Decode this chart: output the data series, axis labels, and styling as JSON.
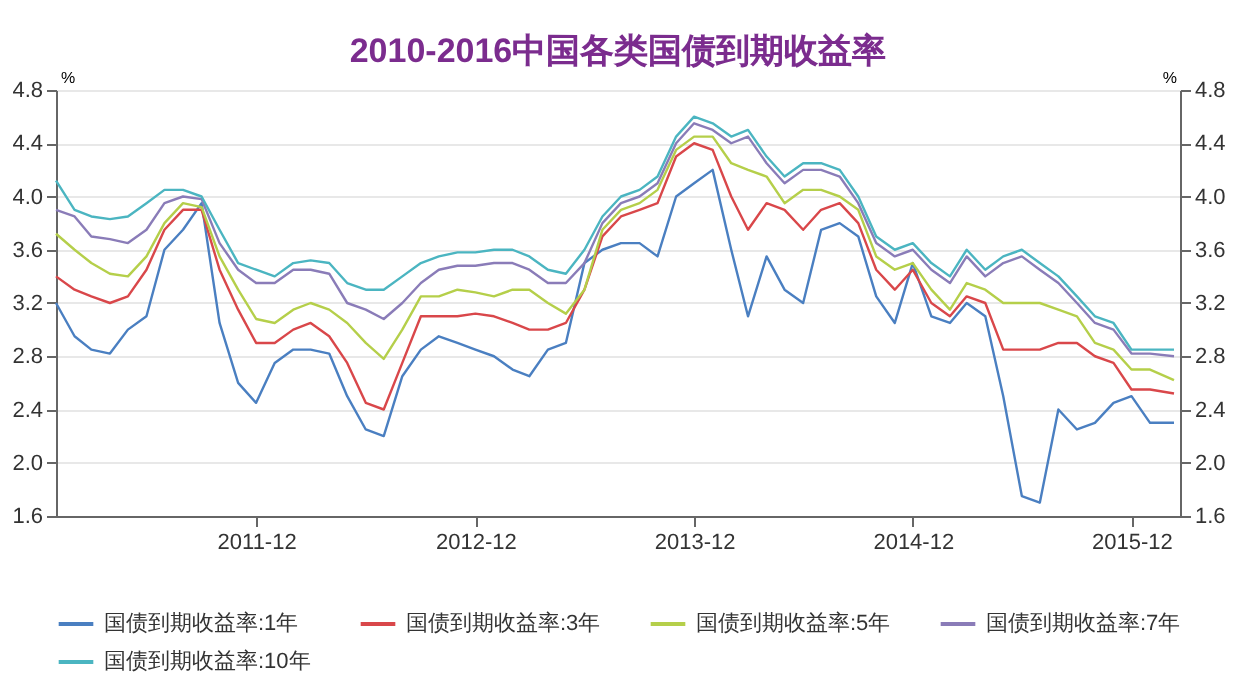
{
  "chart_data": {
    "type": "line",
    "title": "2010-2016中国各类国债到期收益率",
    "ylabel": "%",
    "y2label": "%",
    "x": [
      "2011-01",
      "2011-02",
      "2011-03",
      "2011-04",
      "2011-05",
      "2011-06",
      "2011-07",
      "2011-08",
      "2011-09",
      "2011-10",
      "2011-11",
      "2011-12",
      "2012-01",
      "2012-02",
      "2012-03",
      "2012-04",
      "2012-05",
      "2012-06",
      "2012-07",
      "2012-08",
      "2012-09",
      "2012-10",
      "2012-11",
      "2012-12",
      "2013-01",
      "2013-02",
      "2013-03",
      "2013-04",
      "2013-05",
      "2013-06",
      "2013-07",
      "2013-08",
      "2013-09",
      "2013-10",
      "2013-11",
      "2013-12",
      "2014-01",
      "2014-02",
      "2014-03",
      "2014-04",
      "2014-05",
      "2014-06",
      "2014-07",
      "2014-08",
      "2014-09",
      "2014-10",
      "2014-11",
      "2014-12",
      "2015-01",
      "2015-02",
      "2015-03",
      "2015-04",
      "2015-05",
      "2015-06",
      "2015-07",
      "2015-08",
      "2015-09",
      "2015-10",
      "2015-11",
      "2015-12",
      "2016-01",
      "2016-02-10"
    ],
    "series": [
      {
        "name": "国债到期收益率:1年",
        "color": "#4a7fc1",
        "values": [
          3.2,
          2.95,
          2.85,
          2.82,
          3.0,
          3.1,
          3.6,
          3.75,
          3.95,
          3.05,
          2.6,
          2.45,
          2.75,
          2.85,
          2.85,
          2.82,
          2.5,
          2.25,
          2.2,
          2.65,
          2.85,
          2.95,
          2.9,
          2.85,
          2.8,
          2.7,
          2.65,
          2.85,
          2.9,
          3.5,
          3.6,
          3.65,
          3.65,
          3.55,
          4.0,
          4.1,
          4.2,
          3.6,
          3.1,
          3.55,
          3.3,
          3.2,
          3.75,
          3.8,
          3.7,
          3.25,
          3.05,
          3.5,
          3.1,
          3.05,
          3.2,
          3.1,
          2.5,
          1.75,
          1.7,
          2.4,
          2.25,
          2.3,
          2.45,
          2.5,
          2.3,
          2.3
        ]
      },
      {
        "name": "国债到期收益率:3年",
        "color": "#d9474a",
        "values": [
          3.4,
          3.3,
          3.25,
          3.2,
          3.25,
          3.45,
          3.75,
          3.9,
          3.9,
          3.45,
          3.15,
          2.9,
          2.9,
          3.0,
          3.05,
          2.95,
          2.75,
          2.45,
          2.4,
          2.75,
          3.1,
          3.1,
          3.1,
          3.12,
          3.1,
          3.05,
          3.0,
          3.0,
          3.05,
          3.3,
          3.7,
          3.85,
          3.9,
          3.95,
          4.3,
          4.4,
          4.35,
          4.0,
          3.75,
          3.95,
          3.9,
          3.75,
          3.9,
          3.95,
          3.8,
          3.45,
          3.3,
          3.45,
          3.2,
          3.1,
          3.25,
          3.2,
          2.85,
          2.85,
          2.85,
          2.9,
          2.9,
          2.8,
          2.75,
          2.55,
          2.55,
          2.52
        ]
      },
      {
        "name": "国债到期收益率:5年",
        "color": "#b5cf4a",
        "values": [
          3.72,
          3.6,
          3.5,
          3.42,
          3.4,
          3.55,
          3.8,
          3.95,
          3.92,
          3.55,
          3.3,
          3.08,
          3.05,
          3.15,
          3.2,
          3.15,
          3.05,
          2.9,
          2.78,
          3.0,
          3.25,
          3.25,
          3.3,
          3.28,
          3.25,
          3.3,
          3.3,
          3.2,
          3.12,
          3.3,
          3.75,
          3.9,
          3.95,
          4.05,
          4.35,
          4.45,
          4.45,
          4.25,
          4.2,
          4.15,
          3.95,
          4.05,
          4.05,
          4.0,
          3.9,
          3.55,
          3.45,
          3.5,
          3.3,
          3.15,
          3.35,
          3.3,
          3.2,
          3.2,
          3.2,
          3.15,
          3.1,
          2.9,
          2.85,
          2.7,
          2.7,
          2.62
        ]
      },
      {
        "name": "国债到期收益率:7年",
        "color": "#8a7cb8",
        "values": [
          3.9,
          3.85,
          3.7,
          3.68,
          3.65,
          3.75,
          3.95,
          4.0,
          3.98,
          3.65,
          3.45,
          3.35,
          3.35,
          3.45,
          3.45,
          3.42,
          3.2,
          3.15,
          3.08,
          3.2,
          3.35,
          3.45,
          3.48,
          3.48,
          3.5,
          3.5,
          3.45,
          3.35,
          3.35,
          3.5,
          3.8,
          3.95,
          4.0,
          4.1,
          4.4,
          4.55,
          4.5,
          4.4,
          4.45,
          4.25,
          4.1,
          4.2,
          4.2,
          4.15,
          3.95,
          3.65,
          3.55,
          3.6,
          3.45,
          3.35,
          3.55,
          3.4,
          3.5,
          3.55,
          3.45,
          3.35,
          3.2,
          3.05,
          3.0,
          2.82,
          2.82,
          2.8
        ]
      },
      {
        "name": "国债到期收益率:10年",
        "color": "#4bb5c1",
        "values": [
          4.12,
          3.9,
          3.85,
          3.83,
          3.85,
          3.95,
          4.05,
          4.05,
          4.0,
          3.75,
          3.5,
          3.45,
          3.4,
          3.5,
          3.52,
          3.5,
          3.35,
          3.3,
          3.3,
          3.4,
          3.5,
          3.55,
          3.58,
          3.58,
          3.6,
          3.6,
          3.55,
          3.45,
          3.42,
          3.6,
          3.85,
          4.0,
          4.05,
          4.15,
          4.45,
          4.6,
          4.55,
          4.45,
          4.5,
          4.3,
          4.15,
          4.25,
          4.25,
          4.2,
          4.0,
          3.7,
          3.6,
          3.65,
          3.5,
          3.4,
          3.6,
          3.45,
          3.55,
          3.6,
          3.5,
          3.4,
          3.25,
          3.1,
          3.05,
          2.85,
          2.85,
          2.85
        ]
      }
    ],
    "xlim": [
      "2011-01-01",
      "2016-02-20"
    ],
    "xticks": [
      "2011-12",
      "2012-12",
      "2013-12",
      "2014-12",
      "2015-12"
    ],
    "ylim": [
      1.6,
      4.8
    ],
    "yticks": [
      1.6,
      {
        "value": 2,
        "label": "2.0"
      },
      2.4,
      2.8,
      3.2,
      3.6,
      {
        "value": 4,
        "label": "4.0"
      },
      4.4,
      4.8
    ],
    "y2lim": [
      1.6,
      4.8
    ],
    "y2ticks": [
      1.6,
      {
        "value": 2,
        "label": "2.0"
      },
      2.4,
      2.8,
      3.2,
      3.6,
      {
        "value": 4,
        "label": "4.0"
      },
      4.4,
      4.8
    ],
    "grid": "y",
    "legend": "bottom"
  }
}
